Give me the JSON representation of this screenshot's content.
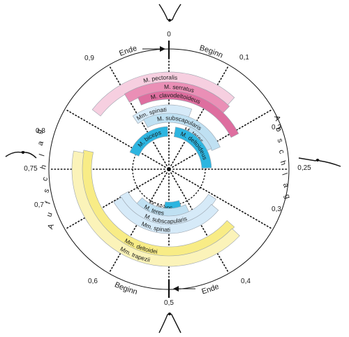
{
  "phase_ticks": [
    {
      "label": "0",
      "frac": 0
    },
    {
      "label": "0,1",
      "frac": 0.1
    },
    {
      "label": "0,2",
      "frac": 0.2
    },
    {
      "label": "0,25",
      "frac": 0.25
    },
    {
      "label": "0,3",
      "frac": 0.3
    },
    {
      "label": "0,4",
      "frac": 0.4
    },
    {
      "label": "0,5",
      "frac": 0.5
    },
    {
      "label": "0,6",
      "frac": 0.6
    },
    {
      "label": "0,7",
      "frac": 0.7
    },
    {
      "label": "0,75",
      "frac": 0.75
    },
    {
      "label": "0,8",
      "frac": 0.8
    },
    {
      "label": "0,9",
      "frac": 0.9
    }
  ],
  "phase_labels": {
    "top_left": "Ende",
    "top_right": "Beginn",
    "bottom_right": "Ende",
    "bottom_left": "Beginn"
  },
  "side_labels": {
    "right": "Abschlag",
    "left": "Aufschlag"
  },
  "muscles": [
    {
      "name": "M. pectoralis",
      "ring": 0,
      "start": 0.855,
      "end": 0.118,
      "color": "#f6cfe0",
      "label_at": 0.985
    },
    {
      "name": "M. serratus",
      "ring": 1,
      "start": 0.915,
      "end": 0.122,
      "color": "#ea8fb6",
      "label_at": 0.02
    },
    {
      "name": "M. clavodeltoideus",
      "ring": 2,
      "start": 0.935,
      "end": 0.175,
      "color": "#de6e9f",
      "label_at": 0.015
    },
    {
      "name": "Mm. spinati",
      "ring": 3,
      "start": 0.905,
      "end": 0.058,
      "color": "#d6eaf8",
      "label_at": 0.952
    },
    {
      "name": "M. subscapularis",
      "ring": 4,
      "start": 0.925,
      "end": 0.185,
      "color": "#bfe0f2",
      "label_at": 0.035
    },
    {
      "name": "M. teres",
      "ring": 5,
      "start": 0.075,
      "end": 0.178,
      "color": "#bfe0f2",
      "label_at": 0.1
    },
    {
      "name": "M. deltoideus",
      "ring": 6,
      "start": 0.025,
      "end": 0.245,
      "color": "#2db5e0",
      "label_at": 0.13
    },
    {
      "name": "M. biceps",
      "ring": 6,
      "start": 0.815,
      "end": 0.995,
      "color": "#2db5e0",
      "label_at": 0.91
    },
    {
      "name": "M. biceps",
      "ring": 6,
      "start": 0.45,
      "end": 0.518,
      "color": "#2db5e0",
      "label_at": 0.535
    },
    {
      "name": "M. teres",
      "ring": 5,
      "start": 0.43,
      "end": 0.62,
      "color": "#bfe0f2",
      "label_at": 0.555
    },
    {
      "name": "M. subscapularis",
      "ring": 4,
      "start": 0.34,
      "end": 0.67,
      "color": "#d6eaf8",
      "label_at": 0.51
    },
    {
      "name": "Mm. spinati",
      "ring": 3,
      "start": 0.36,
      "end": 0.665,
      "color": "#d6eaf8",
      "label_at": 0.535
    },
    {
      "name": "Mm. deltoidei",
      "ring": 1,
      "start": 0.365,
      "end": 0.785,
      "color": "#f8ec86",
      "label_at": 0.555
    },
    {
      "name": "Mm. trapezii",
      "ring": 0,
      "start": 0.37,
      "end": 0.78,
      "color": "#fbf3b9",
      "label_at": 0.56
    }
  ]
}
